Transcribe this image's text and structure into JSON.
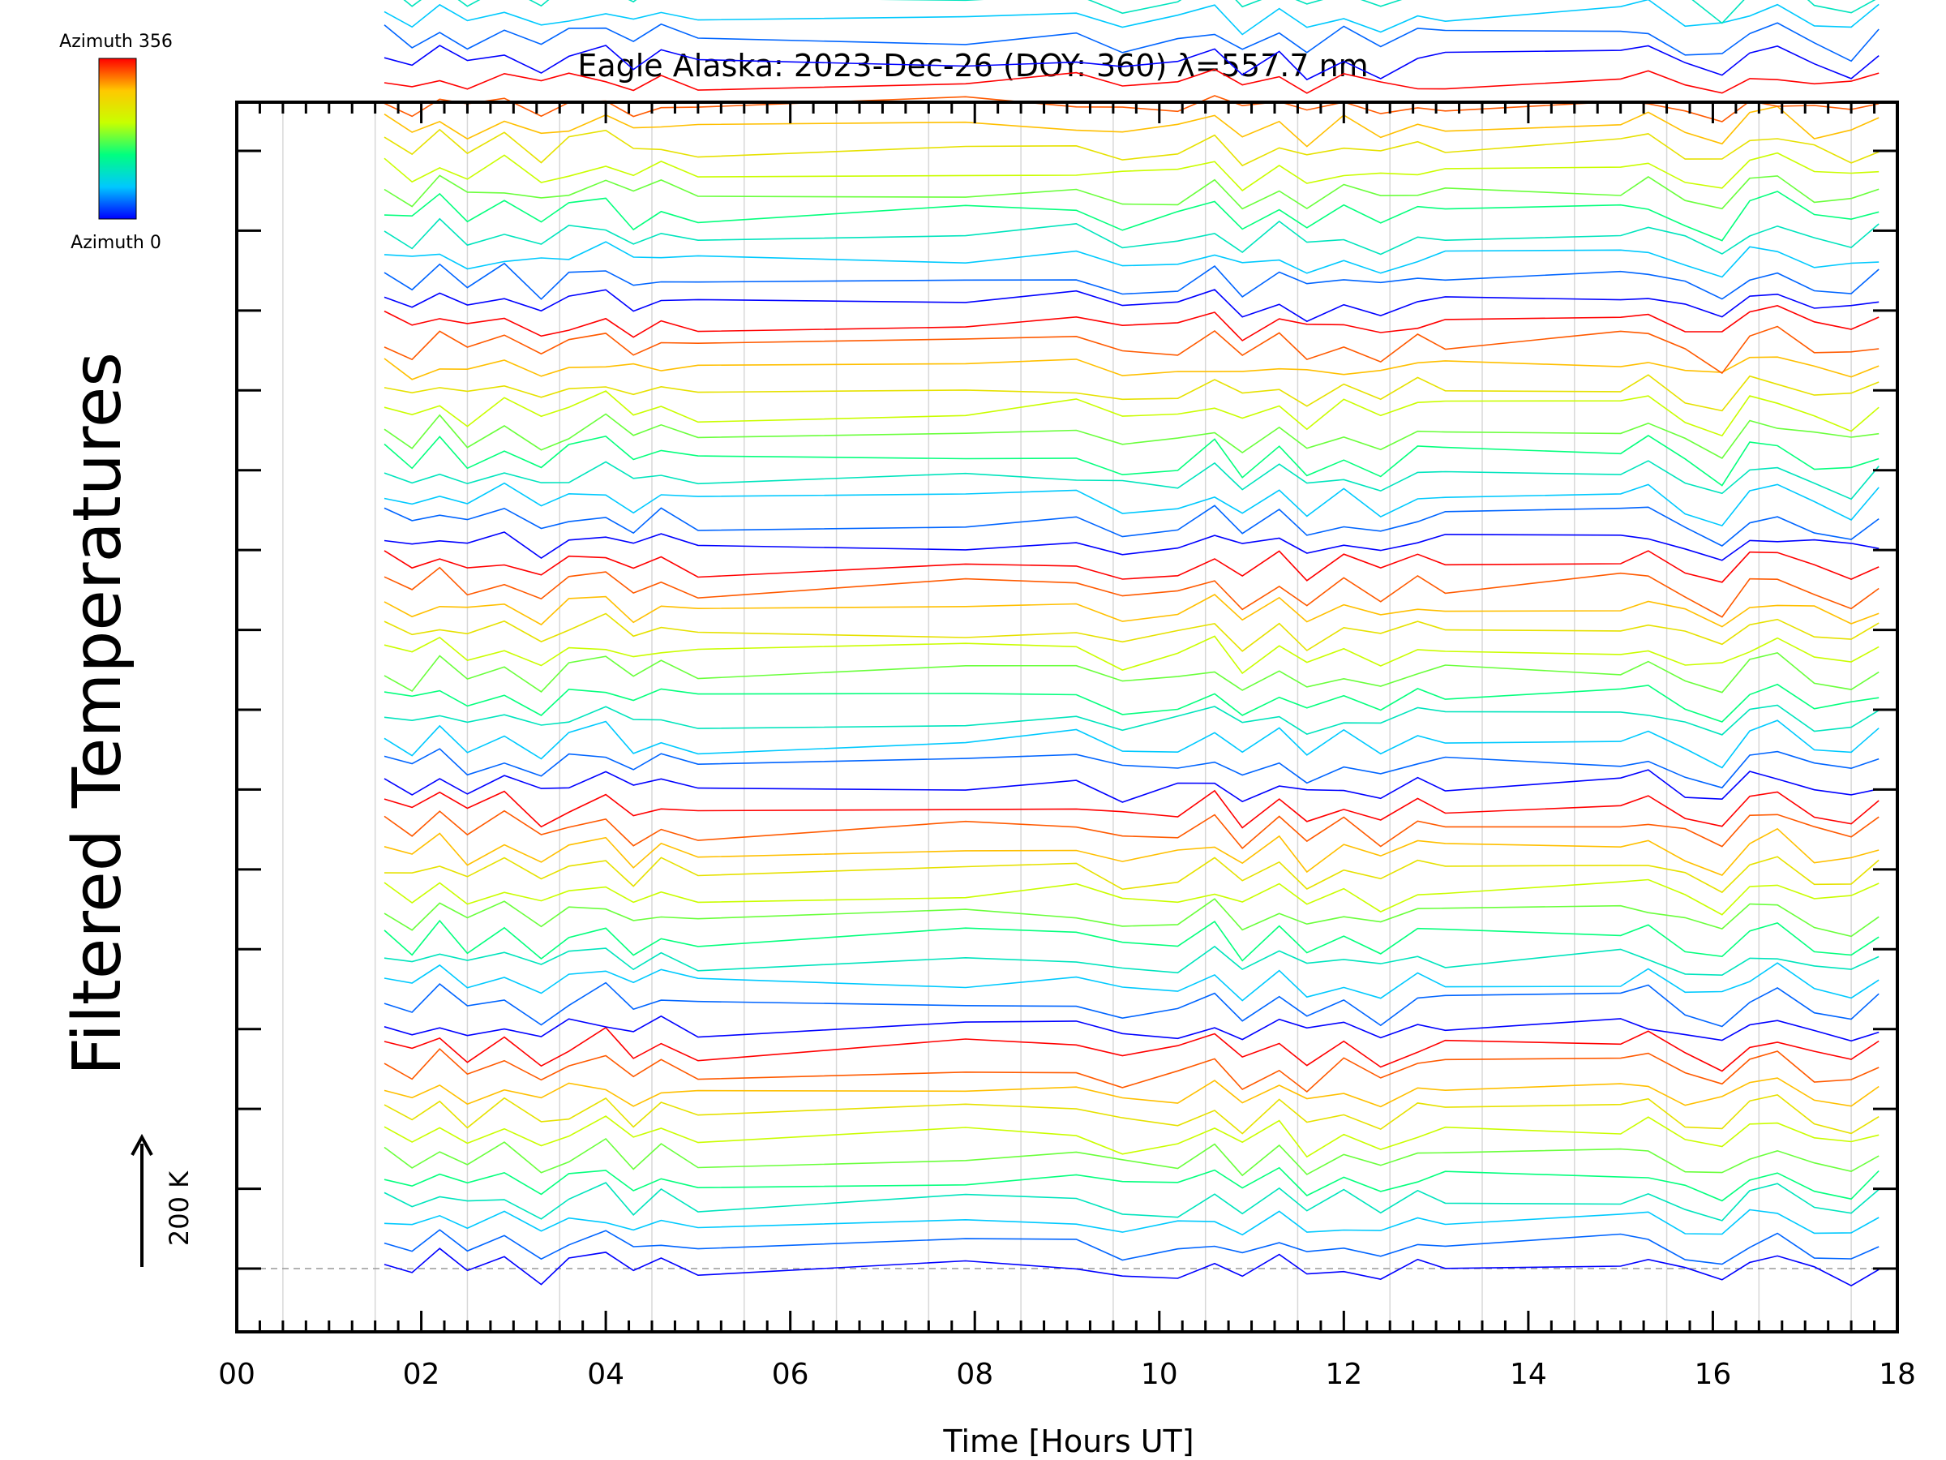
{
  "chart_data": {
    "type": "line",
    "title": "Eagle Alaska: 2023-Dec-26 (DOY: 360) λ=557.7 nm",
    "xlabel": "Time [Hours UT]",
    "ylabel": "Filtered Temperatures",
    "xlim": [
      0,
      18
    ],
    "x_ticks": [
      "00",
      "02",
      "04",
      "06",
      "08",
      "10",
      "12",
      "14",
      "16",
      "18"
    ],
    "x_tick_values": [
      0,
      2,
      4,
      6,
      8,
      10,
      12,
      14,
      16,
      18
    ],
    "ylim": [
      0,
      3000
    ],
    "y_major_step": 200,
    "scale_bar": {
      "label": "200 K",
      "value": 200
    },
    "colorbar": {
      "top_label": "Azimuth 356",
      "bottom_label": "Azimuth 0",
      "min": 0,
      "max": 356,
      "colors": [
        "#0000ff",
        "#00c8ff",
        "#00ff80",
        "#c8ff00",
        "#ffc800",
        "#ff0000"
      ]
    },
    "series_count": 96,
    "series_spacing_k": 27.5,
    "azimuth_cycle": [
      0,
      36,
      72,
      108,
      144,
      180,
      216,
      252,
      288,
      324,
      356
    ],
    "times": [
      1.6,
      1.9,
      2.2,
      2.5,
      2.9,
      3.3,
      3.6,
      4.0,
      4.3,
      4.6,
      5.0,
      7.9,
      9.1,
      9.6,
      10.2,
      10.6,
      10.9,
      11.3,
      11.6,
      12.0,
      12.4,
      12.8,
      13.1,
      15.0,
      15.3,
      15.7,
      16.1,
      16.4,
      16.7,
      17.1,
      17.5,
      17.8
    ],
    "common_perturbation_k": [
      6,
      -5,
      9,
      -4,
      7,
      -8,
      3,
      10,
      -6,
      5,
      -3,
      2,
      4,
      -7,
      -4,
      8,
      -10,
      6,
      -9,
      3,
      -8,
      4,
      2,
      5,
      9,
      -5,
      -14,
      6,
      11,
      -3,
      -9,
      4
    ]
  },
  "colors": {
    "frame": "#000000",
    "gridline": "#d8d8d8",
    "baseline": "#999999"
  }
}
